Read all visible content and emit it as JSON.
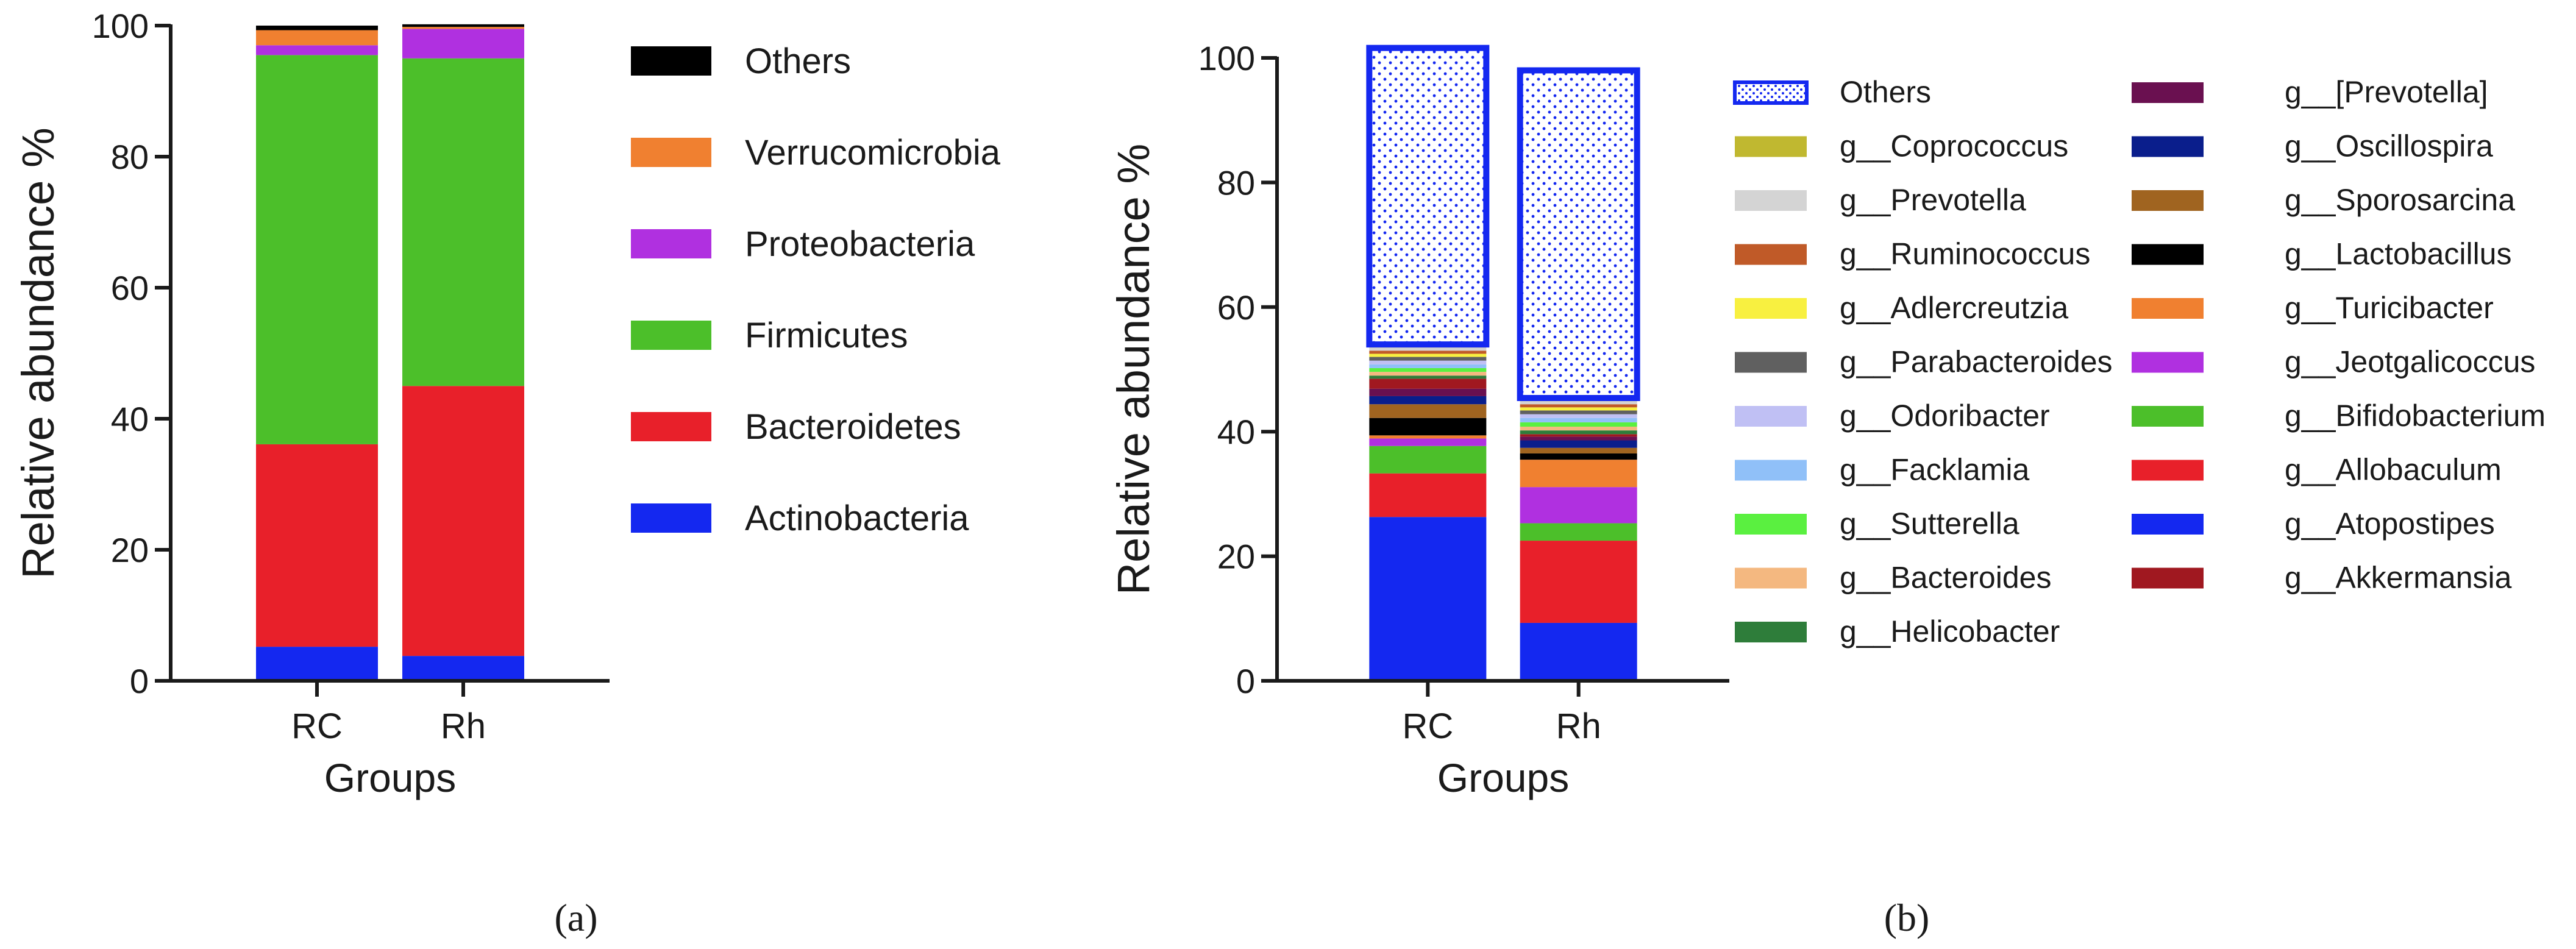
{
  "chart_data": [
    {
      "type": "bar",
      "stacked": true,
      "panel_label": "(a)",
      "title": "",
      "xlabel": "Groups",
      "ylabel": "Relative abundance %",
      "ylim": [
        0,
        100
      ],
      "yticks": [
        0,
        20,
        40,
        60,
        80,
        100
      ],
      "categories": [
        "RC",
        "Rh"
      ],
      "series": [
        {
          "name": "Actinobacteria",
          "color": "#1428f0",
          "values": [
            5.2,
            3.8
          ]
        },
        {
          "name": "Bacteroidetes",
          "color": "#e8202a",
          "values": [
            30.9,
            41.2
          ]
        },
        {
          "name": "Firmicutes",
          "color": "#4cbf2a",
          "values": [
            59.4,
            50.0
          ]
        },
        {
          "name": "Proteobacteria",
          "color": "#b030e0",
          "values": [
            1.5,
            4.5
          ]
        },
        {
          "name": "Verrucomicrobia",
          "color": "#f08030",
          "values": [
            2.3,
            0.3
          ]
        },
        {
          "name": "Others",
          "color": "#000000",
          "values": [
            0.7,
            0.4
          ]
        }
      ],
      "legend_order": [
        "Others",
        "Verrucomicrobia",
        "Proteobacteria",
        "Firmicutes",
        "Bacteroidetes",
        "Actinobacteria"
      ],
      "legend_position": "right"
    },
    {
      "type": "bar",
      "stacked": true,
      "panel_label": "(b)",
      "title": "",
      "xlabel": "Groups",
      "ylabel": "Relative abundance %",
      "ylim": [
        0,
        100
      ],
      "yticks": [
        0,
        20,
        40,
        60,
        80,
        100
      ],
      "categories": [
        "RC",
        "Rh"
      ],
      "series": [
        {
          "name": "g__Atopostipes",
          "color": "#1428f0",
          "values": [
            26.3,
            9.3
          ]
        },
        {
          "name": "g__Allobaculum",
          "color": "#e8202a",
          "values": [
            7.0,
            13.2
          ]
        },
        {
          "name": "g__Bifidobacterium",
          "color": "#4cbf2a",
          "values": [
            4.4,
            2.8
          ]
        },
        {
          "name": "g__Jeotgalicoccus",
          "color": "#b030e0",
          "values": [
            1.2,
            5.8
          ]
        },
        {
          "name": "g__Turicibacter",
          "color": "#f08030",
          "values": [
            0.5,
            4.4
          ]
        },
        {
          "name": "g__Lactobacillus",
          "color": "#000000",
          "values": [
            2.8,
            1.0
          ]
        },
        {
          "name": "g__Sporosarcina",
          "color": "#a06420",
          "values": [
            2.2,
            0.9
          ]
        },
        {
          "name": "g__Oscillospira",
          "color": "#0a1e8c",
          "values": [
            1.3,
            1.2
          ]
        },
        {
          "name": "g__[Prevotella]",
          "color": "#6a1050",
          "values": [
            1.2,
            0.6
          ]
        },
        {
          "name": "g__Akkermansia",
          "color": "#a01820",
          "values": [
            1.6,
            0.4
          ]
        },
        {
          "name": "g__Helicobacter",
          "color": "#2e7d3a",
          "values": [
            0.5,
            0.6
          ]
        },
        {
          "name": "g__Bacteroides",
          "color": "#f4b880",
          "values": [
            0.6,
            0.6
          ]
        },
        {
          "name": "g__Sutterella",
          "color": "#5af040",
          "values": [
            0.6,
            0.7
          ]
        },
        {
          "name": "g__Facklamia",
          "color": "#90c0f8",
          "values": [
            0.6,
            0.7
          ]
        },
        {
          "name": "g__Odoribacter",
          "color": "#c0c0f4",
          "values": [
            0.6,
            0.6
          ]
        },
        {
          "name": "g__Parabacteroides",
          "color": "#606060",
          "values": [
            0.6,
            0.6
          ]
        },
        {
          "name": "g__Adlercreutzia",
          "color": "#f8f040",
          "values": [
            0.5,
            0.5
          ]
        },
        {
          "name": "g__Ruminococcus",
          "color": "#c05a28",
          "values": [
            0.5,
            0.5
          ]
        },
        {
          "name": "g__Prevotella",
          "color": "#d4d4d4",
          "values": [
            0.5,
            0.5
          ]
        },
        {
          "name": "g__Coprococcus",
          "color": "#c0b830",
          "values": [
            0.5,
            0.5
          ]
        },
        {
          "name": "Others",
          "color": "#1428f0",
          "pattern": "dots",
          "values": [
            47.6,
            52.6
          ]
        }
      ],
      "legend_columns": [
        [
          "Others",
          "g__Coprococcus",
          "g__Prevotella",
          "g__Ruminococcus",
          "g__Adlercreutzia",
          "g__Parabacteroides",
          "g__Odoribacter",
          "g__Facklamia",
          "g__Sutterella",
          "g__Bacteroides",
          "g__Helicobacter"
        ],
        [
          "g__[Prevotella]",
          "g__Oscillospira",
          "g__Sporosarcina",
          "g__Lactobacillus",
          "g__Turicibacter",
          "g__Jeotgalicoccus",
          "g__Bifidobacterium",
          "g__Allobaculum",
          "g__Atopostipes",
          "g__Akkermansia"
        ]
      ],
      "legend_position": "right"
    }
  ]
}
